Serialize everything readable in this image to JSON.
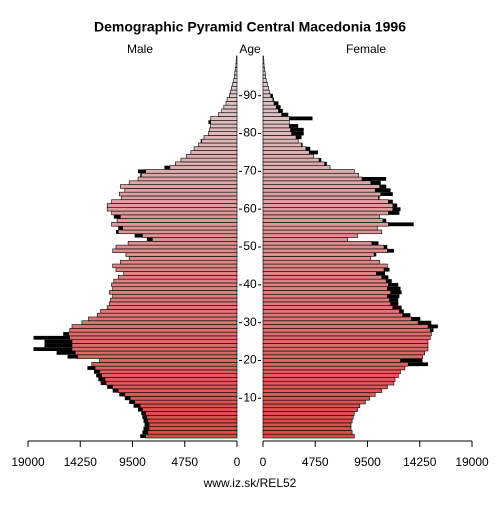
{
  "chart_data": {
    "type": "pyramid",
    "title": "Demographic Pyramid Central Macedonia 1996",
    "y_label": "Age",
    "footer": "www.iz.sk/REL52",
    "y": [
      0,
      1,
      2,
      3,
      4,
      5,
      6,
      7,
      8,
      9,
      10,
      11,
      12,
      13,
      14,
      15,
      16,
      17,
      18,
      19,
      20,
      21,
      22,
      23,
      24,
      25,
      26,
      27,
      28,
      29,
      30,
      31,
      32,
      33,
      34,
      35,
      36,
      37,
      38,
      39,
      40,
      41,
      42,
      43,
      44,
      45,
      46,
      47,
      48,
      49,
      50,
      51,
      52,
      53,
      54,
      55,
      56,
      57,
      58,
      59,
      60,
      61,
      62,
      63,
      64,
      65,
      66,
      67,
      68,
      69,
      70,
      71,
      72,
      73,
      74,
      75,
      76,
      77,
      78,
      79,
      80,
      81,
      82,
      83,
      84,
      85,
      86,
      87,
      88,
      89,
      90,
      91,
      92,
      93,
      94,
      95,
      96,
      97,
      98,
      99,
      100
    ],
    "ylim": [
      -0.5,
      100.5
    ],
    "yticks": [
      10,
      20,
      30,
      40,
      50,
      60,
      70,
      80,
      90
    ],
    "xlim": [
      0,
      19000
    ],
    "xticks": [
      0,
      4750,
      9500,
      14250,
      19000
    ],
    "gradient": [
      "#e04646",
      "#ddd6d6"
    ],
    "excess_color": "#000000",
    "series": [
      {
        "name": "Male",
        "side": "left",
        "values": [
          8800,
          8600,
          8500,
          8400,
          8500,
          8600,
          8700,
          9000,
          9400,
          9800,
          10200,
          10700,
          11300,
          11800,
          12400,
          12600,
          12800,
          13000,
          13600,
          13200,
          12500,
          15400,
          16400,
          18500,
          17500,
          17500,
          18500,
          15800,
          15200,
          15000,
          14100,
          13500,
          12700,
          12400,
          11800,
          11600,
          11500,
          11300,
          11600,
          11300,
          11400,
          11200,
          10800,
          10300,
          11000,
          11300,
          10600,
          9800,
          10100,
          11300,
          11000,
          9900,
          8200,
          9300,
          11000,
          10800,
          11400,
          10900,
          11200,
          11400,
          11800,
          11800,
          11400,
          10500,
          10700,
          10200,
          10600,
          9800,
          9000,
          8800,
          9000,
          6600,
          5600,
          5100,
          4600,
          4200,
          3900,
          3500,
          3300,
          3000,
          2600,
          2500,
          2400,
          2600,
          2400,
          1700,
          1400,
          1200,
          1000,
          900,
          700,
          600,
          500,
          400,
          300,
          250,
          200,
          150,
          100,
          80,
          60
        ]
      },
      {
        "name": "Female",
        "side": "right",
        "values": [
          8300,
          8100,
          8000,
          8000,
          8100,
          8200,
          8300,
          8600,
          8800,
          9300,
          9700,
          10200,
          10800,
          11300,
          11900,
          12000,
          12300,
          12500,
          12900,
          15000,
          14500,
          14500,
          14700,
          15000,
          15000,
          15000,
          15200,
          15300,
          15500,
          15900,
          15300,
          14300,
          13400,
          12800,
          12600,
          12300,
          12300,
          12400,
          12600,
          12500,
          12300,
          11700,
          11400,
          11100,
          11500,
          11300,
          10600,
          9800,
          10300,
          11900,
          11300,
          10500,
          7700,
          8600,
          10800,
          10400,
          13700,
          11200,
          10600,
          12400,
          12500,
          12200,
          11800,
          10600,
          11800,
          11600,
          11200,
          10700,
          11200,
          8700,
          8300,
          6100,
          5800,
          5300,
          4600,
          5000,
          4300,
          3600,
          3200,
          3500,
          3700,
          3700,
          3200,
          2400,
          4500,
          2300,
          1800,
          1600,
          1400,
          1000,
          900,
          600,
          500,
          400,
          300,
          250,
          200,
          150,
          100,
          80,
          60
        ]
      }
    ]
  }
}
